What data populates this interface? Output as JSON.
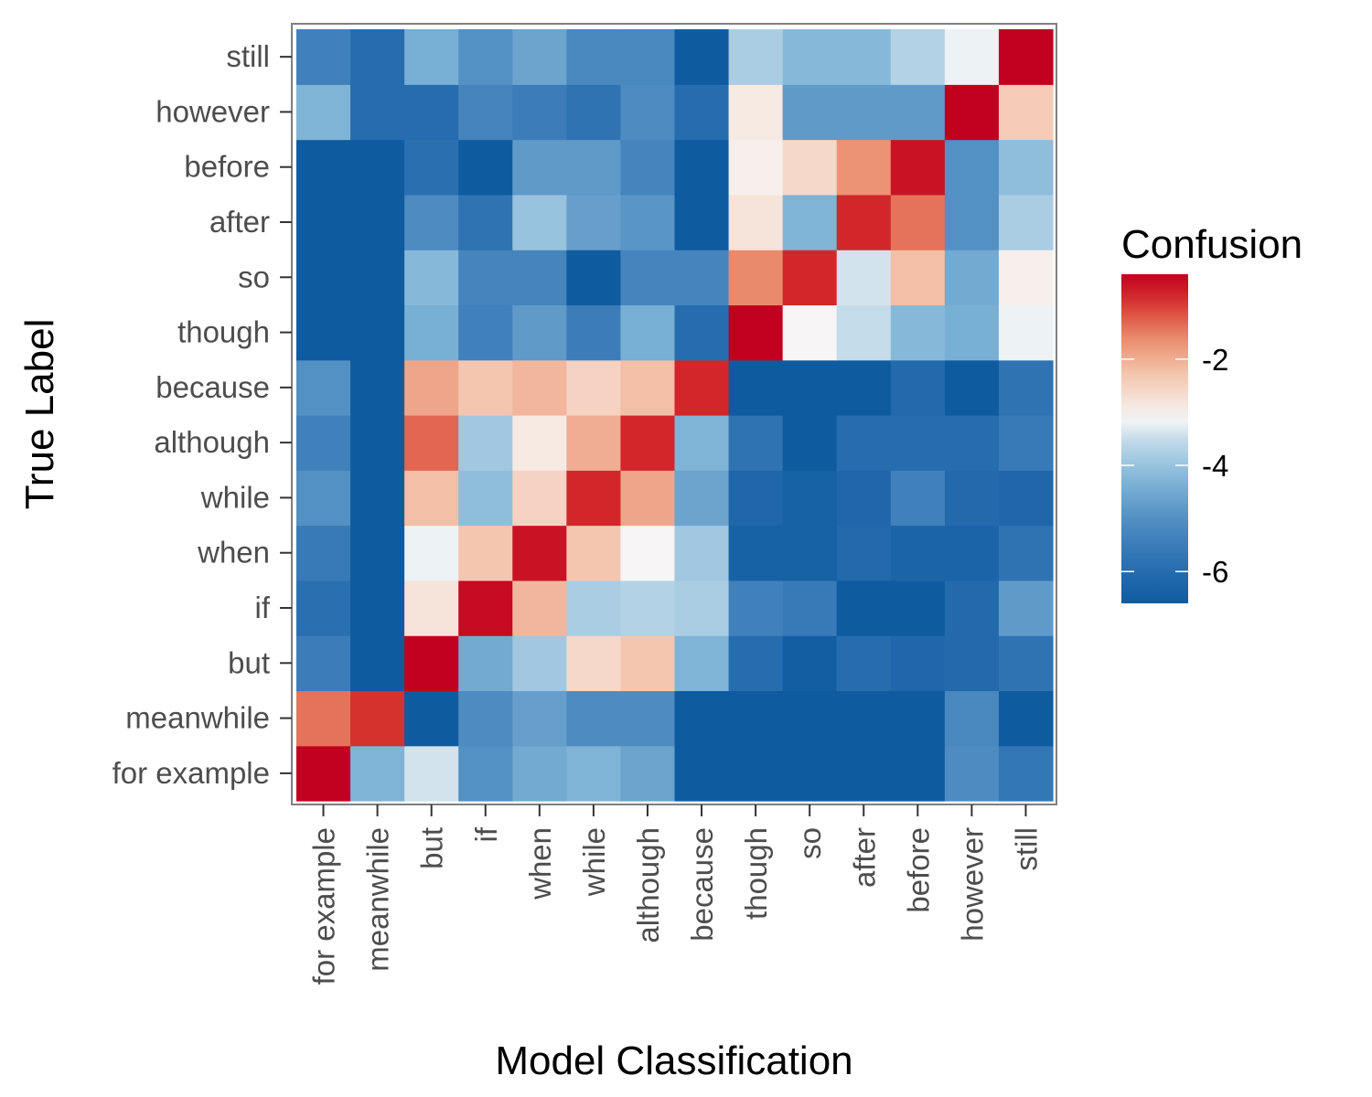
{
  "chart_data": {
    "type": "heatmap",
    "xlabel": "Model Classification",
    "ylabel": "True Label",
    "x_categories": [
      "for example",
      "meanwhile",
      "but",
      "if",
      "when",
      "while",
      "although",
      "because",
      "though",
      "so",
      "after",
      "before",
      "however",
      "still"
    ],
    "y_categories": [
      "for example",
      "meanwhile",
      "but",
      "if",
      "when",
      "while",
      "although",
      "because",
      "though",
      "so",
      "after",
      "before",
      "however",
      "still"
    ],
    "values": [
      [
        -0.4,
        -4.3,
        -3.4,
        -5.0,
        -4.5,
        -4.3,
        -4.6,
        -6.9,
        -6.9,
        -6.9,
        -6.9,
        -6.9,
        -5.1,
        -5.7
      ],
      [
        -1.4,
        -0.9,
        -6.9,
        -5.1,
        -4.7,
        -5.1,
        -5.1,
        -6.9,
        -6.9,
        -6.9,
        -6.9,
        -6.9,
        -5.2,
        -6.9
      ],
      [
        -5.5,
        -6.9,
        -0.4,
        -4.5,
        -3.9,
        -2.6,
        -2.3,
        -4.3,
        -6.0,
        -6.5,
        -6.0,
        -6.2,
        -6.1,
        -5.8
      ],
      [
        -5.9,
        -6.9,
        -2.8,
        -0.5,
        -2.1,
        -3.8,
        -3.7,
        -3.8,
        -5.4,
        -5.6,
        -6.9,
        -6.9,
        -6.1,
        -4.8
      ],
      [
        -5.6,
        -6.9,
        -3.2,
        -2.3,
        -0.6,
        -2.3,
        -3.1,
        -3.9,
        -6.4,
        -6.4,
        -6.1,
        -6.3,
        -6.3,
        -5.8
      ],
      [
        -5.0,
        -6.9,
        -2.2,
        -4.1,
        -2.5,
        -0.8,
        -1.9,
        -4.6,
        -6.2,
        -6.4,
        -6.2,
        -5.4,
        -6.1,
        -6.2
      ],
      [
        -5.4,
        -6.9,
        -1.3,
        -3.9,
        -2.9,
        -2.0,
        -0.8,
        -4.3,
        -5.8,
        -6.9,
        -6.0,
        -6.0,
        -6.0,
        -5.6
      ],
      [
        -5.0,
        -6.9,
        -1.9,
        -2.3,
        -2.1,
        -2.5,
        -2.2,
        -0.8,
        -6.8,
        -6.8,
        -6.8,
        -6.1,
        -6.8,
        -5.8
      ],
      [
        -6.9,
        -6.9,
        -4.4,
        -5.4,
        -4.8,
        -5.5,
        -4.4,
        -6.0,
        -0.4,
        -3.1,
        -3.5,
        -4.2,
        -4.4,
        -3.2
      ],
      [
        -6.9,
        -6.9,
        -4.2,
        -5.3,
        -5.3,
        -6.9,
        -5.3,
        -5.3,
        -1.6,
        -0.8,
        -3.4,
        -2.2,
        -4.5,
        -3.0
      ],
      [
        -6.9,
        -6.9,
        -5.1,
        -5.8,
        -4.0,
        -4.7,
        -4.9,
        -6.9,
        -2.8,
        -4.3,
        -0.8,
        -1.4,
        -5.0,
        -3.8
      ],
      [
        -6.9,
        -6.9,
        -5.9,
        -6.9,
        -4.8,
        -4.8,
        -5.3,
        -6.9,
        -3.0,
        -2.6,
        -1.7,
        -0.6,
        -5.0,
        -4.1
      ],
      [
        -4.3,
        -6.0,
        -6.0,
        -5.3,
        -5.5,
        -5.8,
        -5.1,
        -6.0,
        -2.9,
        -4.8,
        -4.8,
        -4.8,
        -0.2,
        -2.4
      ],
      [
        -5.4,
        -6.0,
        -4.4,
        -5.0,
        -4.6,
        -5.2,
        -5.2,
        -6.9,
        -3.8,
        -4.2,
        -4.2,
        -3.7,
        -3.2,
        -0.2
      ]
    ],
    "colorbar": {
      "title": "Confusion",
      "ticks": [
        -2,
        -4,
        -6
      ],
      "tick_labels": [
        "-2",
        "-4",
        "-6"
      ],
      "range": [
        -6.6,
        -0.4
      ]
    },
    "colors": {
      "high": "#c1001f",
      "mid": "#f7f7f7",
      "low": "#0f5ba0",
      "panel_border": "#7f7f7f",
      "tick_color": "#333333"
    }
  }
}
